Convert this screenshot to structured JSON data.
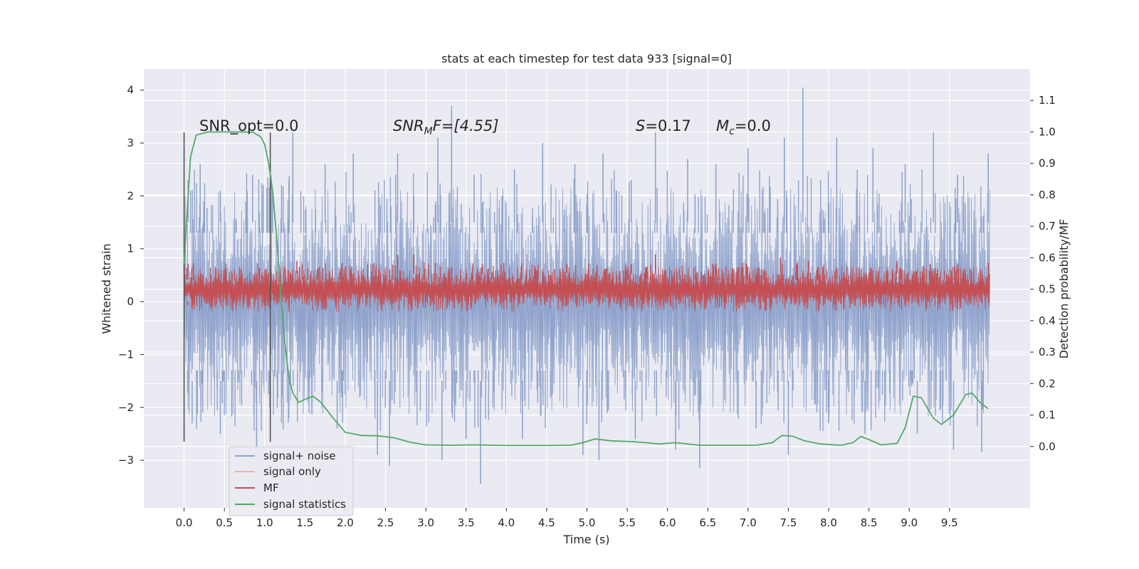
{
  "chart_data": {
    "type": "line",
    "title": "stats at each timestep for test data 933 [signal=0]",
    "xlabel": "Time (s)",
    "ylabel": "Whitened strain",
    "y2label": "Detection probability/MF",
    "xlim": [
      -0.5,
      10.5
    ],
    "ylim": [
      -3.9,
      4.4
    ],
    "y2lim": [
      -0.195,
      1.2
    ],
    "x_ticks": [
      "0.0",
      "0.5",
      "1.0",
      "1.5",
      "2.0",
      "2.5",
      "3.0",
      "3.5",
      "4.0",
      "4.5",
      "5.0",
      "5.5",
      "6.0",
      "6.5",
      "7.0",
      "7.5",
      "8.0",
      "8.5",
      "9.0",
      "9.5"
    ],
    "y_ticks": [
      "−3",
      "−2",
      "−1",
      "0",
      "1",
      "2",
      "3",
      "4"
    ],
    "y2_ticks": [
      "0.0",
      "0.1",
      "0.2",
      "0.3",
      "0.4",
      "0.5",
      "0.6",
      "0.7",
      "0.8",
      "0.9",
      "1.0",
      "1.1"
    ],
    "grid": true,
    "legend_placement": "lower-left",
    "annotations": {
      "snr_opt": "SNR_opt=0.0",
      "snr_mf_base": "SNR",
      "snr_mf_sub": "M",
      "snr_mf_rest": "F=[4.55]",
      "s_sym": "S",
      "s_val": "=0.17",
      "mc_sym": "M",
      "mc_sub": "c",
      "mc_val": "=0.0"
    },
    "vlines": [
      0.0,
      1.07
    ],
    "series": [
      {
        "name": "signal+ noise",
        "color": "#8fa3cc",
        "axis": "left",
        "x_range": [
          0.0,
          10.0
        ],
        "band_lower": -1.5,
        "band_upper": 1.5,
        "peaks": [
          {
            "x": 0.05,
            "y": 2.3
          },
          {
            "x": 0.2,
            "y": 2.6
          },
          {
            "x": 0.45,
            "y": 2.1
          },
          {
            "x": 0.85,
            "y": 2.4
          },
          {
            "x": 1.35,
            "y": 3.2
          },
          {
            "x": 1.75,
            "y": 2.6
          },
          {
            "x": 2.1,
            "y": 2.8
          },
          {
            "x": 2.65,
            "y": 2.8
          },
          {
            "x": 3.15,
            "y": 3.1
          },
          {
            "x": 3.32,
            "y": 3.7
          },
          {
            "x": 3.6,
            "y": 2.4
          },
          {
            "x": 4.1,
            "y": 2.5
          },
          {
            "x": 4.45,
            "y": 3.0
          },
          {
            "x": 4.85,
            "y": 2.6
          },
          {
            "x": 5.2,
            "y": 2.8
          },
          {
            "x": 5.55,
            "y": 2.3
          },
          {
            "x": 5.85,
            "y": 3.2
          },
          {
            "x": 6.25,
            "y": 2.7
          },
          {
            "x": 6.6,
            "y": 2.6
          },
          {
            "x": 7.0,
            "y": 2.9
          },
          {
            "x": 7.45,
            "y": 3.1
          },
          {
            "x": 7.68,
            "y": 4.05
          },
          {
            "x": 8.1,
            "y": 3.1
          },
          {
            "x": 8.55,
            "y": 2.9
          },
          {
            "x": 8.95,
            "y": 2.6
          },
          {
            "x": 9.3,
            "y": 3.2
          },
          {
            "x": 9.6,
            "y": 2.4
          },
          {
            "x": 9.98,
            "y": 2.8
          }
        ],
        "troughs": [
          {
            "x": 0.1,
            "y": -2.3
          },
          {
            "x": 0.45,
            "y": -2.5
          },
          {
            "x": 0.9,
            "y": -2.8
          },
          {
            "x": 1.3,
            "y": -2.2
          },
          {
            "x": 1.9,
            "y": -2.4
          },
          {
            "x": 2.4,
            "y": -2.9
          },
          {
            "x": 2.55,
            "y": -3.1
          },
          {
            "x": 3.2,
            "y": -3.0
          },
          {
            "x": 3.5,
            "y": -2.6
          },
          {
            "x": 3.68,
            "y": -3.45
          },
          {
            "x": 4.2,
            "y": -2.6
          },
          {
            "x": 4.95,
            "y": -2.9
          },
          {
            "x": 5.15,
            "y": -3.0
          },
          {
            "x": 5.6,
            "y": -2.6
          },
          {
            "x": 6.1,
            "y": -2.8
          },
          {
            "x": 6.4,
            "y": -3.15
          },
          {
            "x": 7.1,
            "y": -2.4
          },
          {
            "x": 7.5,
            "y": -2.9
          },
          {
            "x": 8.0,
            "y": -2.3
          },
          {
            "x": 8.45,
            "y": -2.5
          },
          {
            "x": 9.1,
            "y": -2.5
          },
          {
            "x": 9.55,
            "y": -2.8
          },
          {
            "x": 9.9,
            "y": -2.85
          }
        ]
      },
      {
        "name": "signal only",
        "color": "#f0b49a",
        "axis": "left",
        "values": []
      },
      {
        "name": "MF",
        "color": "#c44e52",
        "axis": "right",
        "x_range": [
          0.0,
          10.0
        ],
        "band_lower": 0.45,
        "band_upper": 0.55,
        "peaks": [
          {
            "x": 0.0,
            "y": 0.59
          },
          {
            "x": 1.4,
            "y": 0.59
          },
          {
            "x": 2.65,
            "y": 0.61
          },
          {
            "x": 2.85,
            "y": 0.61
          },
          {
            "x": 3.7,
            "y": 0.58
          },
          {
            "x": 4.75,
            "y": 0.58
          },
          {
            "x": 5.55,
            "y": 0.58
          },
          {
            "x": 5.85,
            "y": 0.61
          },
          {
            "x": 6.6,
            "y": 0.58
          },
          {
            "x": 7.4,
            "y": 0.6
          },
          {
            "x": 7.75,
            "y": 0.59
          },
          {
            "x": 8.85,
            "y": 0.59
          },
          {
            "x": 9.6,
            "y": 0.58
          }
        ],
        "troughs": [
          {
            "x": 0.05,
            "y": 0.46
          },
          {
            "x": 1.2,
            "y": 0.45
          },
          {
            "x": 2.0,
            "y": 0.46
          },
          {
            "x": 4.0,
            "y": 0.45
          }
        ]
      },
      {
        "name": "signal statistics",
        "color": "#55a868",
        "axis": "right",
        "x": [
          0.0,
          0.08,
          0.15,
          0.3,
          0.5,
          0.7,
          0.85,
          0.95,
          1.0,
          1.05,
          1.1,
          1.15,
          1.2,
          1.25,
          1.3,
          1.35,
          1.42,
          1.5,
          1.6,
          1.7,
          1.85,
          2.0,
          2.2,
          2.4,
          2.6,
          2.8,
          3.0,
          3.3,
          3.6,
          4.0,
          4.5,
          4.8,
          4.95,
          5.1,
          5.3,
          5.6,
          5.9,
          6.1,
          6.4,
          6.8,
          7.1,
          7.3,
          7.42,
          7.55,
          7.7,
          7.9,
          8.15,
          8.3,
          8.4,
          8.5,
          8.65,
          8.85,
          8.95,
          9.05,
          9.15,
          9.3,
          9.4,
          9.55,
          9.7,
          9.78,
          9.88,
          9.98
        ],
        "y": [
          0.58,
          0.92,
          0.99,
          1.0,
          1.0,
          1.0,
          0.999,
          0.985,
          0.96,
          0.9,
          0.81,
          0.66,
          0.48,
          0.33,
          0.22,
          0.17,
          0.14,
          0.15,
          0.16,
          0.14,
          0.09,
          0.045,
          0.035,
          0.034,
          0.028,
          0.014,
          0.005,
          0.004,
          0.005,
          0.003,
          0.003,
          0.004,
          0.012,
          0.024,
          0.018,
          0.015,
          0.008,
          0.012,
          0.004,
          0.004,
          0.004,
          0.012,
          0.035,
          0.033,
          0.018,
          0.008,
          0.004,
          0.012,
          0.032,
          0.022,
          0.005,
          0.01,
          0.06,
          0.16,
          0.155,
          0.09,
          0.07,
          0.1,
          0.165,
          0.17,
          0.14,
          0.12
        ]
      }
    ]
  }
}
